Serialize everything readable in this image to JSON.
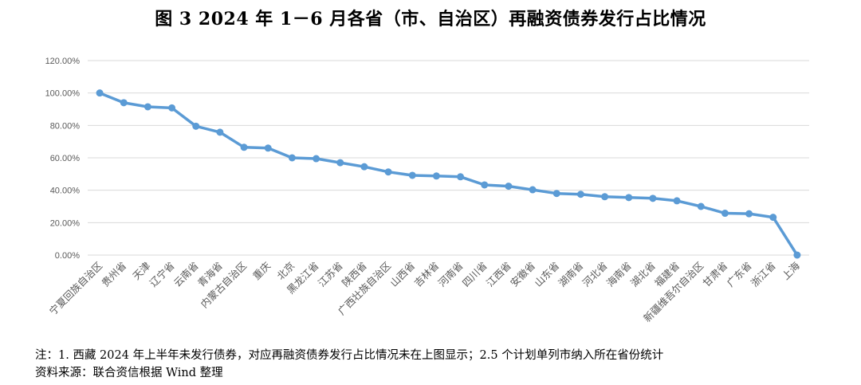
{
  "title": "图 3  2024 年 1－6 月各省（市、自治区）再融资债券发行占比情况",
  "chart_data": {
    "type": "line",
    "title": "图 3  2024 年 1－6 月各省（市、自治区）再融资债券发行占比情况",
    "xlabel": "",
    "ylabel": "",
    "ylim": [
      0,
      120
    ],
    "yticks": [
      "0.00%",
      "20.00%",
      "40.00%",
      "60.00%",
      "80.00%",
      "100.00%",
      "120.00%"
    ],
    "grid": true,
    "legend": "none",
    "color": "#5b9bd5",
    "categories": [
      "宁夏回族自治区",
      "贵州省",
      "天津",
      "辽宁省",
      "云南省",
      "青海省",
      "内蒙古自治区",
      "重庆",
      "北京",
      "黑龙江省",
      "江苏省",
      "陕西省",
      "广西壮族自治区",
      "山西省",
      "吉林省",
      "河南省",
      "四川省",
      "江西省",
      "安徽省",
      "山东省",
      "湖南省",
      "河北省",
      "海南省",
      "湖北省",
      "福建省",
      "新疆维吾尔自治区",
      "甘肃省",
      "广东省",
      "浙江省",
      "上海"
    ],
    "series": [
      {
        "values": [
          100.0,
          94.0,
          91.5,
          90.8,
          79.5,
          75.8,
          66.5,
          66.0,
          60.0,
          59.5,
          57.0,
          54.5,
          51.3,
          49.2,
          48.8,
          48.3,
          43.3,
          42.5,
          40.3,
          38.0,
          37.5,
          36.0,
          35.5,
          35.0,
          33.5,
          30.0,
          25.8,
          25.5,
          23.3,
          0.0
        ]
      }
    ]
  },
  "notes": {
    "line1": "注：1. 西藏 2024 年上半年未发行债券，对应再融资债券发行占比情况未在上图显示；2.5 个计划单列市纳入所在省份统计",
    "line2": "资料来源：联合资信根据 Wind 整理"
  }
}
